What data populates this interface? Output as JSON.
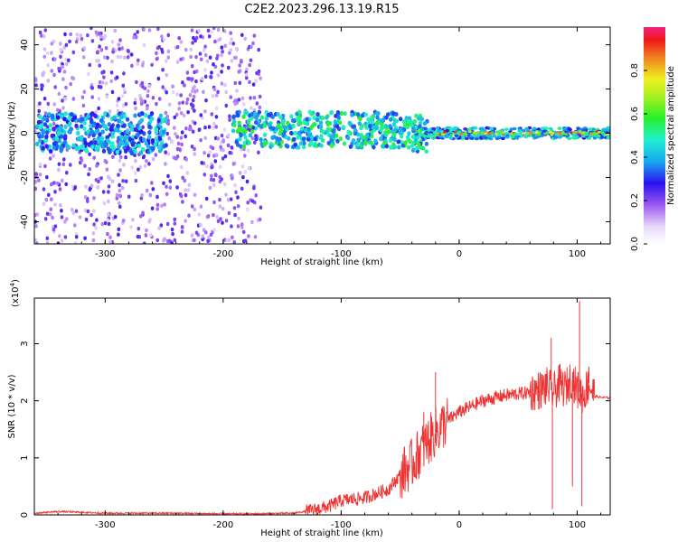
{
  "title": "C2E2.2023.296.13.19.R15",
  "colorbar": {
    "label": "Normalized spectral amplitude",
    "ticks": [
      "0.0",
      "0.2",
      "0.4",
      "0.6",
      "0.8"
    ],
    "tick_values": [
      0.0,
      0.2,
      0.4,
      0.6,
      0.8
    ]
  },
  "chart_data": [
    {
      "type": "heatmap",
      "xlabel": "Height of straight line (km)",
      "ylabel": "Frequency (Hz)",
      "xlim": [
        -360,
        128
      ],
      "ylim": [
        -50,
        48
      ],
      "xticks": [
        -300,
        -200,
        -100,
        0,
        100
      ],
      "xtick_labels": [
        "-300",
        "-200",
        "-100",
        "0",
        "100"
      ],
      "yticks": [
        -40,
        -20,
        0,
        20,
        40
      ],
      "ytick_labels": [
        "-40",
        "-20",
        "0",
        "20",
        "40"
      ],
      "colormap": "rainbow",
      "zlim": [
        0,
        1
      ],
      "description_regions": [
        {
          "x": [
            -360,
            -168
          ],
          "y": [
            -50,
            48
          ],
          "amplitude": "scattered low, ~0.1-0.3"
        },
        {
          "x": [
            -355,
            -250
          ],
          "y": [
            -8,
            8
          ],
          "amplitude": "band ~0.3-0.5"
        },
        {
          "x": [
            -190,
            -30
          ],
          "y": [
            -6,
            8
          ],
          "amplitude": "band ~0.4-0.6"
        },
        {
          "x": [
            -30,
            128
          ],
          "y": [
            -2,
            2
          ],
          "amplitude": "narrow band ~0.5-0.9"
        }
      ]
    },
    {
      "type": "line",
      "xlabel": "Height of straight line (km)",
      "ylabel": "SNR (10 * v/v)",
      "yscale_label": "(x10",
      "yscale_exp": "4",
      "yscale_close": ")",
      "xlim": [
        -360,
        128
      ],
      "ylim": [
        0,
        3.8
      ],
      "xticks": [
        -300,
        -200,
        -100,
        0,
        100
      ],
      "xtick_labels": [
        "-300",
        "-200",
        "-100",
        "0",
        "100"
      ],
      "yticks": [
        0,
        1,
        2,
        3
      ],
      "ytick_labels": [
        "0",
        "1",
        "2",
        "3"
      ],
      "color": "#ee3333",
      "series": [
        {
          "x": [
            -360,
            -340,
            -300,
            -250,
            -200,
            -170,
            -140,
            -125,
            -110,
            -100,
            -80,
            -60,
            -50,
            -40,
            -30,
            -20,
            -10,
            0,
            10,
            20,
            30,
            40,
            50,
            60,
            70,
            75,
            80,
            85,
            90,
            95,
            100,
            105,
            110,
            115,
            120,
            128
          ],
          "y": [
            0.03,
            0.06,
            0.03,
            0.03,
            0.02,
            0.02,
            0.03,
            0.08,
            0.15,
            0.25,
            0.3,
            0.45,
            0.7,
            0.9,
            1.2,
            1.45,
            1.65,
            1.8,
            1.9,
            2.0,
            2.05,
            2.1,
            2.12,
            2.15,
            2.2,
            2.25,
            2.15,
            2.3,
            2.2,
            2.4,
            2.2,
            2.1,
            2.3,
            2.08,
            2.06,
            2.05
          ]
        }
      ],
      "spikes": [
        {
          "x": -20,
          "y": 2.5
        },
        {
          "x": -30,
          "y": 1.8
        },
        {
          "x": 78,
          "y": 3.1
        },
        {
          "x": 79,
          "y": 0.1
        },
        {
          "x": 102,
          "y": 3.75
        },
        {
          "x": 104,
          "y": 0.15
        },
        {
          "x": 96,
          "y": 0.5
        },
        {
          "x": 110,
          "y": 2.6
        }
      ]
    }
  ]
}
